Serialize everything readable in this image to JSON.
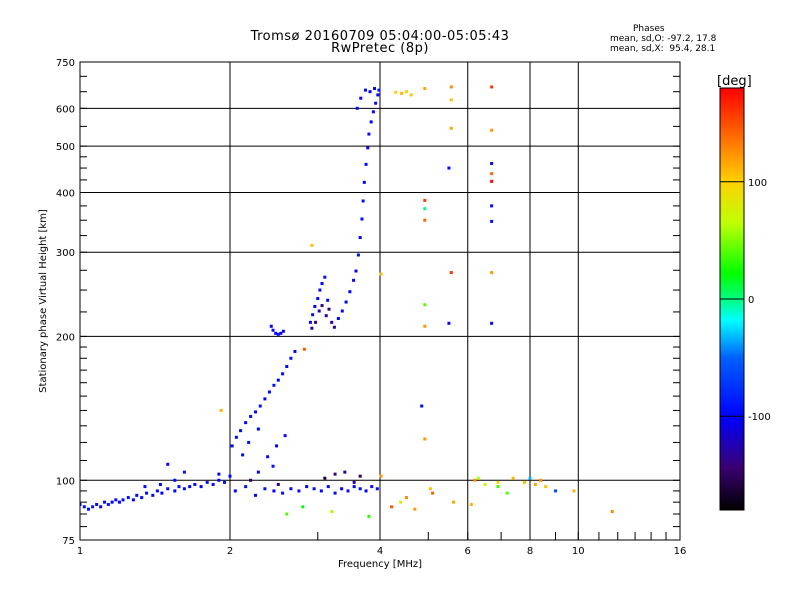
{
  "chart_data": {
    "type": "scatter",
    "title": "Tromsø 20160709 05:04:00-05:05:43",
    "subtitle": "RwPretec (8p)",
    "xlabel": "Frequency [MHz]",
    "ylabel": "Stationary phase Virtual Height [km]",
    "x_scale": "log",
    "y_scale": "log",
    "xlim": [
      1,
      16
    ],
    "ylim": [
      75,
      750
    ],
    "grid": true,
    "x_ticks": [
      1,
      2,
      4,
      6,
      8,
      10,
      16
    ],
    "x_tick_labels": [
      "1",
      "2",
      "4",
      "6",
      "8",
      "10",
      "16"
    ],
    "y_ticks": [
      75,
      100,
      200,
      300,
      400,
      500,
      600,
      750
    ],
    "y_tick_labels": [
      "75",
      "100",
      "200",
      "300",
      "400",
      "500",
      "600",
      "750"
    ],
    "legend": {
      "title": "Phases",
      "lines": [
        "mean, sd,O: -97.2, 17.8",
        "mean, sd,X:  95.4, 28.1"
      ]
    },
    "colorbar": {
      "label": "[deg]",
      "range": [
        -180,
        180
      ],
      "ticks": [
        100,
        0,
        -100
      ],
      "tick_labels": [
        "100",
        "0",
        "-100"
      ]
    },
    "series": [
      {
        "points": [
          [
            1.0,
            89,
            -90
          ],
          [
            1.02,
            88,
            -92
          ],
          [
            1.04,
            87,
            -95
          ],
          [
            1.06,
            88,
            -88
          ],
          [
            1.08,
            89,
            -97
          ],
          [
            1.1,
            88,
            -100
          ],
          [
            1.12,
            90,
            -96
          ],
          [
            1.14,
            89,
            -91
          ],
          [
            1.16,
            90,
            -98
          ],
          [
            1.18,
            91,
            -94
          ],
          [
            1.2,
            90,
            -100
          ],
          [
            1.22,
            91,
            -96
          ],
          [
            1.25,
            92,
            -93
          ],
          [
            1.28,
            91,
            -99
          ],
          [
            1.3,
            93,
            -95
          ],
          [
            1.33,
            92,
            -97
          ],
          [
            1.36,
            94,
            -92
          ],
          [
            1.4,
            93,
            -100
          ],
          [
            1.43,
            95,
            -96
          ],
          [
            1.46,
            94,
            -98
          ],
          [
            1.5,
            96,
            -94
          ],
          [
            1.55,
            95,
            -101
          ],
          [
            1.58,
            97,
            -97
          ],
          [
            1.62,
            96,
            -93
          ],
          [
            1.66,
            97,
            -99
          ],
          [
            1.7,
            98,
            -95
          ],
          [
            1.75,
            97,
            -100
          ],
          [
            1.8,
            99,
            -96
          ],
          [
            1.85,
            98,
            -92
          ],
          [
            1.9,
            100,
            -98
          ],
          [
            1.95,
            99,
            -94
          ],
          [
            1.35,
            97,
            -97
          ],
          [
            1.45,
            98,
            -101
          ],
          [
            1.55,
            100,
            -95
          ],
          [
            1.62,
            104,
            -92
          ],
          [
            1.5,
            108,
            -96
          ],
          [
            1.9,
            103,
            -98
          ],
          [
            2.0,
            102,
            -97
          ],
          [
            2.02,
            118,
            -98
          ],
          [
            2.06,
            123,
            -96
          ],
          [
            2.1,
            127,
            -94
          ],
          [
            2.15,
            132,
            -99
          ],
          [
            2.2,
            136,
            -95
          ],
          [
            2.25,
            139,
            -97
          ],
          [
            2.3,
            143,
            -92
          ],
          [
            2.35,
            148,
            -98
          ],
          [
            2.4,
            153,
            -96
          ],
          [
            2.45,
            158,
            -93
          ],
          [
            2.5,
            162,
            -99
          ],
          [
            2.55,
            167,
            -95
          ],
          [
            2.6,
            173,
            -97
          ],
          [
            2.65,
            180,
            -94
          ],
          [
            2.7,
            186,
            -98
          ],
          [
            2.12,
            113,
            -96
          ],
          [
            2.18,
            120,
            -93
          ],
          [
            2.28,
            128,
            -99
          ],
          [
            2.38,
            112,
            -95
          ],
          [
            2.48,
            118,
            -97
          ],
          [
            2.58,
            124,
            -94
          ],
          [
            2.28,
            104,
            -100
          ],
          [
            2.44,
            107,
            -92
          ],
          [
            2.42,
            210,
            -100
          ],
          [
            2.44,
            206,
            -98
          ],
          [
            2.47,
            203,
            -102
          ],
          [
            2.5,
            202,
            -97
          ],
          [
            2.53,
            203,
            -99
          ],
          [
            2.56,
            205,
            -95
          ],
          [
            2.9,
            214,
            -98
          ],
          [
            2.93,
            222,
            -96
          ],
          [
            2.96,
            231,
            -100
          ],
          [
            3.0,
            240,
            -97
          ],
          [
            3.03,
            250,
            -95
          ],
          [
            3.06,
            258,
            -99
          ],
          [
            3.1,
            266,
            -94
          ],
          [
            2.92,
            208,
            -128
          ],
          [
            2.97,
            214,
            -140
          ],
          [
            3.02,
            226,
            -126
          ],
          [
            3.06,
            232,
            -135
          ],
          [
            3.12,
            221,
            -130
          ],
          [
            3.16,
            228,
            -138
          ],
          [
            3.2,
            214,
            -124
          ],
          [
            3.24,
            209,
            -128
          ],
          [
            3.14,
            238,
            -96
          ],
          [
            3.3,
            218,
            -98
          ],
          [
            3.36,
            226,
            -96
          ],
          [
            3.42,
            236,
            -100
          ],
          [
            3.48,
            248,
            -97
          ],
          [
            3.54,
            262,
            -95
          ],
          [
            3.58,
            274,
            -99
          ],
          [
            3.62,
            296,
            -94
          ],
          [
            3.65,
            322,
            -98
          ],
          [
            3.68,
            352,
            -96
          ],
          [
            3.7,
            384,
            -93
          ],
          [
            3.72,
            420,
            -99
          ],
          [
            3.75,
            458,
            -95
          ],
          [
            3.78,
            496,
            -97
          ],
          [
            3.8,
            530,
            -94
          ],
          [
            3.84,
            562,
            -98
          ],
          [
            3.88,
            590,
            -96
          ],
          [
            3.92,
            615,
            -93
          ],
          [
            3.96,
            640,
            -99
          ],
          [
            3.6,
            600,
            -95
          ],
          [
            3.66,
            630,
            -97
          ],
          [
            3.74,
            655,
            -94
          ],
          [
            3.82,
            650,
            -98
          ],
          [
            3.9,
            660,
            -96
          ],
          [
            3.98,
            655,
            -93
          ],
          [
            2.05,
            95,
            -96
          ],
          [
            2.15,
            97,
            -94
          ],
          [
            2.25,
            93,
            -98
          ],
          [
            2.35,
            96,
            -95
          ],
          [
            2.45,
            95,
            -100
          ],
          [
            2.55,
            94,
            -93
          ],
          [
            2.65,
            96,
            -97
          ],
          [
            2.75,
            95,
            -95
          ],
          [
            2.85,
            97,
            -99
          ],
          [
            2.95,
            96,
            -94
          ],
          [
            3.05,
            95,
            -98
          ],
          [
            3.15,
            97,
            -96
          ],
          [
            3.25,
            94,
            -93
          ],
          [
            3.35,
            96,
            -99
          ],
          [
            3.45,
            95,
            -95
          ],
          [
            3.55,
            97,
            -97
          ],
          [
            3.65,
            96,
            -94
          ],
          [
            3.75,
            95,
            -98
          ],
          [
            3.85,
            97,
            -96
          ],
          [
            3.95,
            96,
            -93
          ],
          [
            3.1,
            101,
            -160
          ],
          [
            3.25,
            103,
            -140
          ],
          [
            3.55,
            99,
            -130
          ],
          [
            3.65,
            102,
            -150
          ],
          [
            3.4,
            104,
            -120
          ],
          [
            2.2,
            100,
            -150
          ],
          [
            2.5,
            98,
            -135
          ],
          [
            4.85,
            143,
            -95
          ],
          [
            5.5,
            213,
            -97
          ],
          [
            6.7,
            213,
            -96
          ],
          [
            6.7,
            348,
            -94
          ],
          [
            6.7,
            375,
            -98
          ],
          [
            6.7,
            460,
            -95
          ],
          [
            5.5,
            450,
            -97
          ],
          [
            2.6,
            85,
            40
          ],
          [
            2.8,
            88,
            20
          ],
          [
            3.2,
            86,
            60
          ],
          [
            3.8,
            84,
            30
          ],
          [
            4.4,
            90,
            80
          ],
          [
            4.7,
            87,
            120
          ],
          [
            5.1,
            94,
            140
          ],
          [
            6.1,
            89,
            110
          ],
          [
            6.5,
            98,
            70
          ],
          [
            7.2,
            94,
            40
          ],
          [
            8.0,
            101,
            -30
          ],
          [
            9.0,
            95,
            -60
          ]
        ]
      },
      {
        "points": [
          [
            1.92,
            140,
            110
          ],
          [
            2.82,
            188,
            145
          ],
          [
            2.92,
            310,
            105
          ],
          [
            4.02,
            270,
            110
          ],
          [
            4.3,
            648,
            100
          ],
          [
            4.42,
            645,
            110
          ],
          [
            4.52,
            650,
            95
          ],
          [
            4.62,
            640,
            105
          ],
          [
            4.92,
            660,
            115
          ],
          [
            5.56,
            665,
            125
          ],
          [
            5.56,
            625,
            105
          ],
          [
            5.56,
            545,
            115
          ],
          [
            6.7,
            665,
            160
          ],
          [
            6.7,
            540,
            120
          ],
          [
            6.7,
            438,
            140
          ],
          [
            6.7,
            272,
            120
          ],
          [
            5.56,
            272,
            160
          ],
          [
            4.92,
            350,
            140
          ],
          [
            4.92,
            210,
            120
          ],
          [
            4.92,
            233,
            40
          ],
          [
            6.7,
            422,
            175
          ],
          [
            4.92,
            385,
            155
          ],
          [
            4.92,
            122,
            120
          ],
          [
            4.02,
            102,
            120
          ],
          [
            4.22,
            88,
            145
          ],
          [
            4.52,
            92,
            125
          ],
          [
            5.05,
            96,
            105
          ],
          [
            5.62,
            90,
            115
          ],
          [
            6.2,
            100,
            125
          ],
          [
            6.9,
            99,
            95
          ],
          [
            7.4,
            101,
            110
          ],
          [
            7.8,
            99,
            105
          ],
          [
            8.2,
            98,
            115
          ],
          [
            8.4,
            100,
            125
          ],
          [
            8.6,
            97,
            105
          ],
          [
            9.8,
            95,
            110
          ],
          [
            11.7,
            86,
            125
          ],
          [
            6.3,
            101,
            60
          ],
          [
            6.9,
            97,
            30
          ],
          [
            4.92,
            370,
            0
          ]
        ]
      }
    ]
  }
}
